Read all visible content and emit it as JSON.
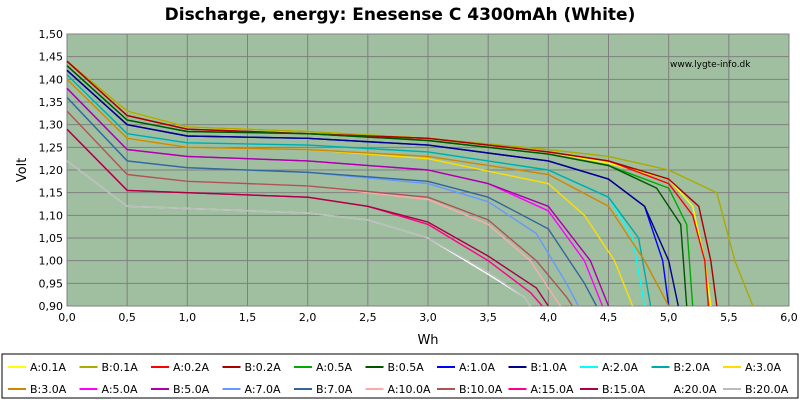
{
  "chart_data": {
    "type": "line",
    "title": "Discharge, energy: Enesense C 4300mAh (White)",
    "xlabel": "Wh",
    "ylabel": "Volt",
    "watermark": "www.lygte-info.dk",
    "xlim": [
      0,
      6
    ],
    "ylim": [
      0.9,
      1.5
    ],
    "x_ticks": [
      "0,0",
      "0,5",
      "1,0",
      "1,5",
      "2,0",
      "2,5",
      "3,0",
      "3,5",
      "4,0",
      "4,5",
      "5,0",
      "5,5",
      "6,0"
    ],
    "y_ticks": [
      "0,90",
      "0,95",
      "1,00",
      "1,05",
      "1,10",
      "1,15",
      "1,20",
      "1,25",
      "1,30",
      "1,35",
      "1,40",
      "1,45",
      "1,50"
    ],
    "grid": true,
    "plot_background": "#9fbfa0",
    "legend_placement": "bottom",
    "series": [
      {
        "name": "A:0.1A",
        "color": "#ffff00",
        "points": [
          [
            0,
            1.44
          ],
          [
            0.5,
            1.33
          ],
          [
            1.0,
            1.295
          ],
          [
            2.0,
            1.285
          ],
          [
            3.0,
            1.27
          ],
          [
            4.0,
            1.24
          ],
          [
            4.5,
            1.215
          ],
          [
            5.0,
            1.18
          ],
          [
            5.2,
            1.12
          ],
          [
            5.3,
            1.0
          ],
          [
            5.35,
            0.9
          ]
        ]
      },
      {
        "name": "B:0.1A",
        "color": "#aaaa00",
        "points": [
          [
            0,
            1.44
          ],
          [
            0.5,
            1.33
          ],
          [
            1.0,
            1.295
          ],
          [
            2.0,
            1.285
          ],
          [
            3.0,
            1.27
          ],
          [
            4.0,
            1.245
          ],
          [
            4.5,
            1.23
          ],
          [
            5.0,
            1.2
          ],
          [
            5.4,
            1.15
          ],
          [
            5.55,
            1.0
          ],
          [
            5.7,
            0.9
          ]
        ]
      },
      {
        "name": "A:0.2A",
        "color": "#ff0000",
        "points": [
          [
            0,
            1.44
          ],
          [
            0.5,
            1.32
          ],
          [
            1.0,
            1.29
          ],
          [
            2.0,
            1.28
          ],
          [
            3.0,
            1.27
          ],
          [
            4.0,
            1.24
          ],
          [
            4.5,
            1.22
          ],
          [
            5.0,
            1.17
          ],
          [
            5.2,
            1.1
          ],
          [
            5.3,
            1.0
          ],
          [
            5.33,
            0.9
          ]
        ]
      },
      {
        "name": "B:0.2A",
        "color": "#aa0000",
        "points": [
          [
            0,
            1.44
          ],
          [
            0.5,
            1.32
          ],
          [
            1.0,
            1.29
          ],
          [
            2.0,
            1.28
          ],
          [
            3.0,
            1.27
          ],
          [
            4.0,
            1.24
          ],
          [
            4.5,
            1.22
          ],
          [
            5.0,
            1.18
          ],
          [
            5.25,
            1.12
          ],
          [
            5.35,
            1.0
          ],
          [
            5.4,
            0.9
          ]
        ]
      },
      {
        "name": "A:0.5A",
        "color": "#00aa00",
        "points": [
          [
            0,
            1.43
          ],
          [
            0.5,
            1.31
          ],
          [
            1.0,
            1.285
          ],
          [
            2.0,
            1.28
          ],
          [
            3.0,
            1.265
          ],
          [
            4.0,
            1.235
          ],
          [
            4.5,
            1.21
          ],
          [
            5.0,
            1.16
          ],
          [
            5.15,
            1.08
          ],
          [
            5.2,
            0.9
          ]
        ]
      },
      {
        "name": "B:0.5A",
        "color": "#005500",
        "points": [
          [
            0,
            1.43
          ],
          [
            0.5,
            1.31
          ],
          [
            1.0,
            1.285
          ],
          [
            2.0,
            1.28
          ],
          [
            3.0,
            1.265
          ],
          [
            4.0,
            1.235
          ],
          [
            4.5,
            1.21
          ],
          [
            4.9,
            1.16
          ],
          [
            5.1,
            1.08
          ],
          [
            5.15,
            0.9
          ]
        ]
      },
      {
        "name": "A:1.0A",
        "color": "#0000ff",
        "points": [
          [
            0,
            1.42
          ],
          [
            0.5,
            1.3
          ],
          [
            1.0,
            1.275
          ],
          [
            2.0,
            1.27
          ],
          [
            3.0,
            1.255
          ],
          [
            4.0,
            1.22
          ],
          [
            4.5,
            1.18
          ],
          [
            4.8,
            1.12
          ],
          [
            4.95,
            1.0
          ],
          [
            5.0,
            0.9
          ]
        ]
      },
      {
        "name": "B:1.0A",
        "color": "#000088",
        "points": [
          [
            0,
            1.42
          ],
          [
            0.5,
            1.3
          ],
          [
            1.0,
            1.275
          ],
          [
            2.0,
            1.27
          ],
          [
            3.0,
            1.255
          ],
          [
            4.0,
            1.22
          ],
          [
            4.5,
            1.18
          ],
          [
            4.8,
            1.12
          ],
          [
            5.0,
            1.0
          ],
          [
            5.08,
            0.9
          ]
        ]
      },
      {
        "name": "A:2.0A",
        "color": "#00ffff",
        "points": [
          [
            0,
            1.41
          ],
          [
            0.5,
            1.28
          ],
          [
            1.0,
            1.26
          ],
          [
            2.0,
            1.255
          ],
          [
            3.0,
            1.24
          ],
          [
            4.0,
            1.2
          ],
          [
            4.5,
            1.14
          ],
          [
            4.7,
            1.05
          ],
          [
            4.8,
            0.9
          ]
        ]
      },
      {
        "name": "B:2.0A",
        "color": "#00aaaa",
        "points": [
          [
            0,
            1.41
          ],
          [
            0.5,
            1.28
          ],
          [
            1.0,
            1.26
          ],
          [
            2.0,
            1.255
          ],
          [
            3.0,
            1.24
          ],
          [
            4.0,
            1.2
          ],
          [
            4.5,
            1.14
          ],
          [
            4.75,
            1.05
          ],
          [
            4.85,
            0.9
          ]
        ]
      },
      {
        "name": "A:3.0A",
        "color": "#ffdd00",
        "points": [
          [
            0,
            1.4
          ],
          [
            0.5,
            1.27
          ],
          [
            1.0,
            1.25
          ],
          [
            2.0,
            1.245
          ],
          [
            3.0,
            1.225
          ],
          [
            4.0,
            1.17
          ],
          [
            4.3,
            1.1
          ],
          [
            4.55,
            1.0
          ],
          [
            4.7,
            0.9
          ]
        ]
      },
      {
        "name": "B:3.0A",
        "color": "#cc8800",
        "points": [
          [
            0,
            1.4
          ],
          [
            0.5,
            1.27
          ],
          [
            1.0,
            1.25
          ],
          [
            2.0,
            1.245
          ],
          [
            3.0,
            1.23
          ],
          [
            4.0,
            1.19
          ],
          [
            4.5,
            1.12
          ],
          [
            4.8,
            1.0
          ],
          [
            5.0,
            0.9
          ]
        ]
      },
      {
        "name": "A:5.0A",
        "color": "#ff00ff",
        "points": [
          [
            0,
            1.38
          ],
          [
            0.5,
            1.245
          ],
          [
            1.0,
            1.23
          ],
          [
            2.0,
            1.22
          ],
          [
            3.0,
            1.2
          ],
          [
            3.5,
            1.17
          ],
          [
            4.0,
            1.11
          ],
          [
            4.3,
            1.0
          ],
          [
            4.45,
            0.9
          ]
        ]
      },
      {
        "name": "B:5.0A",
        "color": "#aa00aa",
        "points": [
          [
            0,
            1.38
          ],
          [
            0.5,
            1.245
          ],
          [
            1.0,
            1.23
          ],
          [
            2.0,
            1.22
          ],
          [
            3.0,
            1.2
          ],
          [
            3.5,
            1.17
          ],
          [
            4.0,
            1.12
          ],
          [
            4.35,
            1.0
          ],
          [
            4.5,
            0.9
          ]
        ]
      },
      {
        "name": "A:7.0A",
        "color": "#6699ff",
        "points": [
          [
            0,
            1.36
          ],
          [
            0.5,
            1.22
          ],
          [
            1.0,
            1.205
          ],
          [
            2.0,
            1.195
          ],
          [
            3.0,
            1.17
          ],
          [
            3.5,
            1.13
          ],
          [
            3.9,
            1.06
          ],
          [
            4.15,
            0.95
          ],
          [
            4.25,
            0.9
          ]
        ]
      },
      {
        "name": "B:7.0A",
        "color": "#336699",
        "points": [
          [
            0,
            1.36
          ],
          [
            0.5,
            1.22
          ],
          [
            1.0,
            1.205
          ],
          [
            2.0,
            1.195
          ],
          [
            3.0,
            1.175
          ],
          [
            3.5,
            1.14
          ],
          [
            4.0,
            1.07
          ],
          [
            4.3,
            0.95
          ],
          [
            4.4,
            0.9
          ]
        ]
      },
      {
        "name": "A:10.0A",
        "color": "#ffaaaa",
        "points": [
          [
            0,
            1.33
          ],
          [
            0.5,
            1.19
          ],
          [
            1.0,
            1.175
          ],
          [
            2.0,
            1.165
          ],
          [
            3.0,
            1.135
          ],
          [
            3.5,
            1.08
          ],
          [
            3.85,
            1.0
          ],
          [
            4.05,
            0.92
          ],
          [
            4.1,
            0.9
          ]
        ]
      },
      {
        "name": "B:10.0A",
        "color": "#aa5555",
        "points": [
          [
            0,
            1.33
          ],
          [
            0.5,
            1.19
          ],
          [
            1.0,
            1.175
          ],
          [
            2.0,
            1.165
          ],
          [
            3.0,
            1.14
          ],
          [
            3.5,
            1.09
          ],
          [
            3.9,
            1.0
          ],
          [
            4.15,
            0.92
          ],
          [
            4.2,
            0.9
          ]
        ]
      },
      {
        "name": "A:15.0A",
        "color": "#ff0088",
        "points": [
          [
            0,
            1.29
          ],
          [
            0.5,
            1.155
          ],
          [
            1.0,
            1.15
          ],
          [
            2.0,
            1.14
          ],
          [
            2.5,
            1.12
          ],
          [
            3.0,
            1.08
          ],
          [
            3.5,
            1.0
          ],
          [
            3.85,
            0.93
          ],
          [
            3.95,
            0.9
          ]
        ]
      },
      {
        "name": "B:15.0A",
        "color": "#aa0044",
        "points": [
          [
            0,
            1.29
          ],
          [
            0.5,
            1.155
          ],
          [
            1.0,
            1.15
          ],
          [
            2.0,
            1.14
          ],
          [
            2.5,
            1.12
          ],
          [
            3.0,
            1.085
          ],
          [
            3.5,
            1.01
          ],
          [
            3.9,
            0.94
          ],
          [
            4.0,
            0.9
          ]
        ]
      },
      {
        "name": "A:20.0A",
        "color": "#ffffff",
        "points": [
          [
            0,
            1.22
          ],
          [
            0.5,
            1.12
          ],
          [
            1.0,
            1.115
          ],
          [
            2.0,
            1.105
          ],
          [
            2.5,
            1.09
          ],
          [
            3.0,
            1.05
          ],
          [
            3.5,
            0.97
          ],
          [
            3.8,
            0.92
          ],
          [
            3.85,
            0.9
          ]
        ]
      },
      {
        "name": "B:20.0A",
        "color": "#bbbbbb",
        "points": [
          [
            0,
            1.22
          ],
          [
            0.5,
            1.12
          ],
          [
            1.0,
            1.115
          ],
          [
            2.0,
            1.105
          ],
          [
            2.5,
            1.09
          ],
          [
            3.0,
            1.05
          ],
          [
            3.5,
            0.975
          ],
          [
            3.8,
            0.92
          ],
          [
            3.85,
            0.9
          ]
        ]
      }
    ]
  }
}
